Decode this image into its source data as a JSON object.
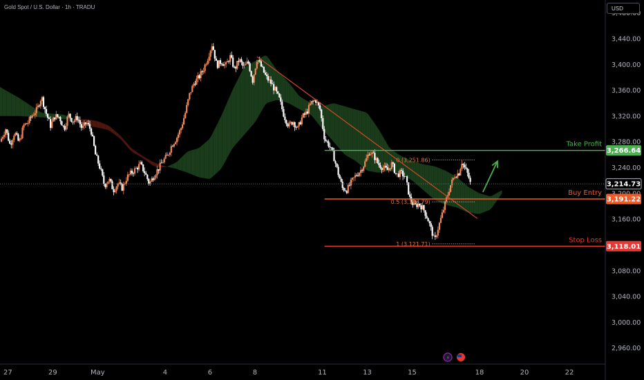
{
  "header": {
    "title": "Gold Spot / U.S. Dollar · 1h · TRADU",
    "currency": "USD"
  },
  "chart_data": {
    "type": "candlestick",
    "y_axis": {
      "ticks": [
        3480,
        3440,
        3400,
        3360,
        3320,
        3280,
        3240,
        3200,
        3160,
        3120,
        3080,
        3040,
        3000,
        2960
      ],
      "tick_labels": [
        "3,480.00",
        "3,440.00",
        "3,400.00",
        "3,360.00",
        "3,320.00",
        "3,280.00",
        "3,240.00",
        "3,200.00",
        "3,160.00",
        "3,120.00",
        "3,080.00",
        "3,040.00",
        "3,000.00",
        "2,960.00"
      ],
      "range": [
        2935,
        3500
      ]
    },
    "x_axis": {
      "ticks": [
        {
          "label": "27",
          "t": 0
        },
        {
          "label": "29",
          "t": 2
        },
        {
          "label": "May",
          "t": 4
        },
        {
          "label": "4",
          "t": 7
        },
        {
          "label": "6",
          "t": 9
        },
        {
          "label": "8",
          "t": 11
        },
        {
          "label": "11",
          "t": 14
        },
        {
          "label": "13",
          "t": 16
        },
        {
          "label": "15",
          "t": 18
        },
        {
          "label": "18",
          "t": 21
        },
        {
          "label": "20",
          "t": 23
        },
        {
          "label": "22",
          "t": 25
        }
      ],
      "range": [
        -0.35,
        26.6
      ]
    },
    "price_path": [
      [
        -0.35,
        3280
      ],
      [
        -0.1,
        3300
      ],
      [
        0.1,
        3275
      ],
      [
        0.3,
        3295
      ],
      [
        0.5,
        3278
      ],
      [
        0.7,
        3305
      ],
      [
        0.9,
        3310
      ],
      [
        1.1,
        3322
      ],
      [
        1.3,
        3330
      ],
      [
        1.5,
        3350
      ],
      [
        1.7,
        3325
      ],
      [
        1.9,
        3305
      ],
      [
        2.1,
        3320
      ],
      [
        2.3,
        3318
      ],
      [
        2.5,
        3300
      ],
      [
        2.7,
        3322
      ],
      [
        2.9,
        3312
      ],
      [
        3.1,
        3318
      ],
      [
        3.3,
        3300
      ],
      [
        3.5,
        3310
      ],
      [
        3.7,
        3298
      ],
      [
        3.9,
        3260
      ],
      [
        4.1,
        3240
      ],
      [
        4.3,
        3212
      ],
      [
        4.5,
        3222
      ],
      [
        4.7,
        3205
      ],
      [
        4.9,
        3215
      ],
      [
        5.1,
        3208
      ],
      [
        5.3,
        3225
      ],
      [
        5.5,
        3232
      ],
      [
        5.7,
        3238
      ],
      [
        5.9,
        3245
      ],
      [
        6.1,
        3232
      ],
      [
        6.3,
        3215
      ],
      [
        6.5,
        3228
      ],
      [
        6.7,
        3238
      ],
      [
        6.9,
        3250
      ],
      [
        7.1,
        3258
      ],
      [
        7.3,
        3275
      ],
      [
        7.5,
        3285
      ],
      [
        7.7,
        3300
      ],
      [
        7.9,
        3325
      ],
      [
        8.1,
        3355
      ],
      [
        8.3,
        3372
      ],
      [
        8.5,
        3380
      ],
      [
        8.7,
        3392
      ],
      [
        8.9,
        3410
      ],
      [
        9.1,
        3432
      ],
      [
        9.3,
        3398
      ],
      [
        9.5,
        3405
      ],
      [
        9.7,
        3398
      ],
      [
        9.9,
        3412
      ],
      [
        10.1,
        3392
      ],
      [
        10.3,
        3408
      ],
      [
        10.5,
        3395
      ],
      [
        10.7,
        3404
      ],
      [
        10.9,
        3375
      ],
      [
        11.1,
        3410
      ],
      [
        11.3,
        3395
      ],
      [
        11.5,
        3380
      ],
      [
        11.7,
        3372
      ],
      [
        11.9,
        3360
      ],
      [
        12.1,
        3345
      ],
      [
        12.3,
        3320
      ],
      [
        12.5,
        3305
      ],
      [
        12.7,
        3312
      ],
      [
        12.9,
        3300
      ],
      [
        13.1,
        3318
      ],
      [
        13.3,
        3325
      ],
      [
        13.5,
        3340
      ],
      [
        13.7,
        3345
      ],
      [
        13.9,
        3330
      ],
      [
        14.1,
        3285
      ],
      [
        14.3,
        3275
      ],
      [
        14.5,
        3258
      ],
      [
        14.7,
        3232
      ],
      [
        14.9,
        3208
      ],
      [
        15.1,
        3205
      ],
      [
        15.3,
        3218
      ],
      [
        15.5,
        3228
      ],
      [
        15.7,
        3235
      ],
      [
        15.9,
        3248
      ],
      [
        16.1,
        3265
      ],
      [
        16.3,
        3258
      ],
      [
        16.5,
        3245
      ],
      [
        16.7,
        3240
      ],
      [
        16.9,
        3236
      ],
      [
        17.1,
        3246
      ],
      [
        17.3,
        3228
      ],
      [
        17.5,
        3232
      ],
      [
        17.7,
        3225
      ],
      [
        17.9,
        3192
      ],
      [
        18.1,
        3180
      ],
      [
        18.3,
        3184
      ],
      [
        18.5,
        3176
      ],
      [
        18.7,
        3160
      ],
      [
        18.9,
        3138
      ],
      [
        19.0,
        3125
      ],
      [
        19.1,
        3140
      ],
      [
        19.3,
        3163
      ],
      [
        19.5,
        3188
      ],
      [
        19.7,
        3212
      ],
      [
        19.9,
        3228
      ],
      [
        20.1,
        3232
      ],
      [
        20.2,
        3250
      ],
      [
        20.3,
        3242
      ],
      [
        20.5,
        3228
      ],
      [
        20.6,
        3214
      ]
    ],
    "cloud_upper": [
      [
        -0.35,
        3365
      ],
      [
        0.5,
        3348
      ],
      [
        1.5,
        3325
      ],
      [
        2.5,
        3322
      ],
      [
        3.5,
        3305
      ],
      [
        4.0,
        3302
      ],
      [
        4.5,
        3298
      ],
      [
        5.0,
        3285
      ],
      [
        5.5,
        3265
      ],
      [
        6.0,
        3255
      ],
      [
        6.5,
        3242
      ],
      [
        7.0,
        3240
      ],
      [
        7.5,
        3248
      ],
      [
        8.0,
        3265
      ],
      [
        8.5,
        3270
      ],
      [
        9.0,
        3285
      ],
      [
        9.5,
        3320
      ],
      [
        10.0,
        3360
      ],
      [
        10.5,
        3395
      ],
      [
        11.0,
        3405
      ],
      [
        11.5,
        3415
      ],
      [
        12.0,
        3390
      ],
      [
        12.5,
        3372
      ],
      [
        13.0,
        3350
      ],
      [
        13.5,
        3340
      ],
      [
        14.0,
        3335
      ],
      [
        14.5,
        3340
      ],
      [
        15.0,
        3335
      ],
      [
        15.5,
        3330
      ],
      [
        16.0,
        3325
      ],
      [
        16.5,
        3300
      ],
      [
        17.0,
        3270
      ],
      [
        17.5,
        3258
      ],
      [
        18.0,
        3250
      ],
      [
        18.5,
        3245
      ],
      [
        19.0,
        3242
      ],
      [
        19.5,
        3235
      ],
      [
        20.0,
        3225
      ],
      [
        20.5,
        3210
      ],
      [
        21.0,
        3200
      ],
      [
        21.5,
        3195
      ],
      [
        22.0,
        3205
      ]
    ],
    "cloud_lower": [
      [
        -0.35,
        3320
      ],
      [
        0.5,
        3320
      ],
      [
        1.5,
        3318
      ],
      [
        2.5,
        3315
      ],
      [
        3.5,
        3315
      ],
      [
        4.0,
        3312
      ],
      [
        4.5,
        3305
      ],
      [
        5.0,
        3290
      ],
      [
        5.5,
        3270
      ],
      [
        6.0,
        3258
      ],
      [
        6.5,
        3248
      ],
      [
        7.0,
        3242
      ],
      [
        7.5,
        3238
      ],
      [
        8.0,
        3232
      ],
      [
        8.5,
        3225
      ],
      [
        9.0,
        3222
      ],
      [
        9.5,
        3238
      ],
      [
        10.0,
        3270
      ],
      [
        10.5,
        3290
      ],
      [
        11.0,
        3310
      ],
      [
        11.5,
        3340
      ],
      [
        12.0,
        3345
      ],
      [
        12.5,
        3340
      ],
      [
        13.0,
        3330
      ],
      [
        13.5,
        3322
      ],
      [
        14.0,
        3300
      ],
      [
        14.5,
        3280
      ],
      [
        15.0,
        3260
      ],
      [
        15.5,
        3250
      ],
      [
        16.0,
        3235
      ],
      [
        16.5,
        3232
      ],
      [
        17.0,
        3235
      ],
      [
        17.5,
        3230
      ],
      [
        18.0,
        3220
      ],
      [
        18.5,
        3205
      ],
      [
        19.0,
        3190
      ],
      [
        19.5,
        3182
      ],
      [
        20.0,
        3178
      ],
      [
        20.5,
        3170
      ],
      [
        21.0,
        3168
      ],
      [
        21.5,
        3175
      ],
      [
        22.0,
        3200
      ]
    ],
    "trendline": {
      "from": [
        11.1,
        3412
      ],
      "to": [
        20.9,
        3161
      ]
    },
    "levels": [
      {
        "name": "Take Profit",
        "price": 3266.64,
        "price_label": "3,266.64",
        "color": "#4caf50"
      },
      {
        "name": "Buy Entry",
        "price": 3191.22,
        "price_label": "3,191.22",
        "color": "#f05a28"
      },
      {
        "name": "Stop Loss",
        "price": 3118.01,
        "price_label": "3,118.01",
        "color": "#e53935"
      }
    ],
    "last_price": {
      "price": 3214.73,
      "label": "3,214.73"
    },
    "fib": {
      "start_t": 18.9,
      "end_t": 20.8,
      "lines": [
        {
          "label": "0 (3,251.86)",
          "price": 3251.86
        },
        {
          "label": "0.5 (3,186.79)",
          "price": 3186.79
        },
        {
          "label": "1 (3,121.71)",
          "price": 3121.71
        }
      ]
    },
    "arrow": {
      "from": [
        21.15,
        3202
      ],
      "to": [
        21.8,
        3250
      ],
      "color": "#4caf50"
    },
    "colors": {
      "up": "#f0895a",
      "down": "#ffffff",
      "cloud_bull": "#1e4620",
      "cloud_bear": "#5a1a12"
    }
  }
}
